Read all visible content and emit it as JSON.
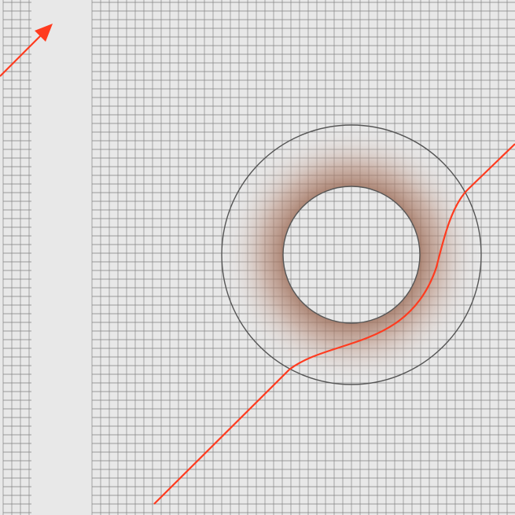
{
  "colors": {
    "background": "#e8e8e8",
    "grid_line": "#808080",
    "ring_outline": "#5a5a5a",
    "ring_fill_inner": "#a0705a",
    "ring_fill_outer": "#e8e8e8",
    "ray": "#ff3b1f",
    "arrow": "#ff3b1f"
  },
  "elements": {
    "left_grid_strip": "grid",
    "blank_band": "empty",
    "main_grid": "grid",
    "shell_ring": "annulus",
    "deflected_ray": "curve",
    "direction_arrow": "arrow"
  }
}
